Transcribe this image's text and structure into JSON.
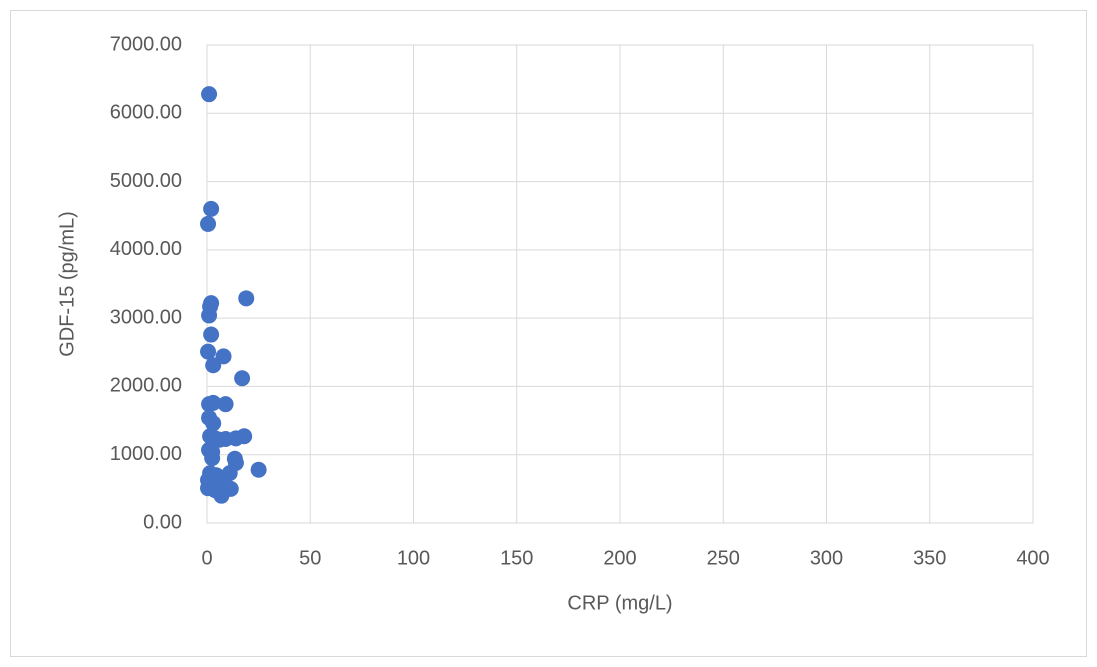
{
  "chart_data": {
    "type": "scatter",
    "x_label": "CRP (mg/L)",
    "y_label": "GDF-15 (pg/mL)",
    "series": [
      {
        "color": "#4472c4",
        "x": [
          1,
          2,
          0.5,
          2,
          1.5,
          19,
          1,
          2,
          0.5,
          8,
          3,
          17,
          1,
          3,
          9,
          1,
          3,
          1.5,
          4,
          6,
          9,
          14,
          18,
          1,
          2.5,
          2.5,
          13.5,
          14,
          25,
          1.5,
          4.5,
          11,
          0.5,
          3,
          5,
          8,
          0.5,
          4,
          11.5,
          7
        ],
        "values": [
          6280,
          4600,
          4380,
          3220,
          3170,
          3290,
          3040,
          2760,
          2510,
          2440,
          2310,
          2120,
          1740,
          1760,
          1740,
          1540,
          1460,
          1270,
          1240,
          1220,
          1230,
          1240,
          1270,
          1070,
          1040,
          950,
          940,
          880,
          780,
          730,
          700,
          730,
          630,
          560,
          600,
          630,
          510,
          480,
          500,
          400
        ]
      }
    ],
    "xlim": [
      0,
      400
    ],
    "xticks": [
      0,
      50,
      100,
      150,
      200,
      250,
      300,
      350,
      400
    ],
    "ylim": [
      0,
      7000
    ],
    "yticks": [
      {
        "value": 0,
        "label": "0.00"
      },
      {
        "value": 1000,
        "label": "1000.00"
      },
      {
        "value": 2000,
        "label": "2000.00"
      },
      {
        "value": 3000,
        "label": "3000.00"
      },
      {
        "value": 4000,
        "label": "4000.00"
      },
      {
        "value": 5000,
        "label": "5000.00"
      },
      {
        "value": 6000,
        "label": "6000.00"
      },
      {
        "value": 7000,
        "label": "7000.00"
      }
    ],
    "grid": true
  }
}
